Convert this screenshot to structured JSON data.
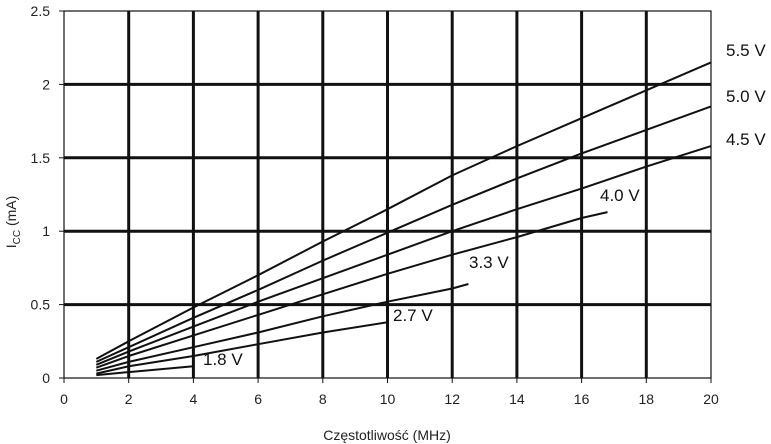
{
  "chart_data": {
    "type": "line",
    "xlabel": "Częstotliwość (MHz)",
    "ylabel_main": "I",
    "ylabel_sub": "CC",
    "ylabel_unit": " (mA)",
    "xlim": [
      0,
      20
    ],
    "ylim": [
      0,
      2.5
    ],
    "x_ticks": [
      0,
      2,
      4,
      6,
      8,
      10,
      12,
      14,
      16,
      18,
      20
    ],
    "y_ticks": [
      0,
      0.5,
      1,
      1.5,
      2,
      2.5
    ],
    "x_tick_labels": [
      "0",
      "2",
      "4",
      "6",
      "8",
      "10",
      "12",
      "14",
      "16",
      "18",
      "20"
    ],
    "y_tick_labels": [
      "0",
      "0.5",
      "1",
      "1.5",
      "2",
      "2.5"
    ],
    "grid": true,
    "series": [
      {
        "name": "5.5 V",
        "x": [
          1,
          2,
          4,
          6,
          8,
          10,
          12,
          14,
          16,
          18,
          20
        ],
        "y": [
          0.13,
          0.25,
          0.48,
          0.7,
          0.93,
          1.15,
          1.38,
          1.58,
          1.77,
          1.96,
          2.15
        ]
      },
      {
        "name": "5.0 V",
        "x": [
          1,
          2,
          4,
          6,
          8,
          10,
          12,
          14,
          16,
          18,
          20
        ],
        "y": [
          0.11,
          0.21,
          0.41,
          0.6,
          0.8,
          0.99,
          1.18,
          1.36,
          1.53,
          1.69,
          1.85
        ]
      },
      {
        "name": "4.5 V",
        "x": [
          1,
          2,
          4,
          6,
          8,
          10,
          12,
          14,
          16,
          18,
          20
        ],
        "y": [
          0.09,
          0.18,
          0.35,
          0.52,
          0.68,
          0.84,
          1.0,
          1.15,
          1.29,
          1.44,
          1.58
        ]
      },
      {
        "name": "4.0 V",
        "x": [
          1,
          2,
          4,
          6,
          8,
          10,
          12,
          14,
          16,
          16.8
        ],
        "y": [
          0.07,
          0.15,
          0.29,
          0.43,
          0.57,
          0.71,
          0.84,
          0.96,
          1.09,
          1.13
        ]
      },
      {
        "name": "3.3 V",
        "x": [
          1,
          2,
          4,
          6,
          8,
          10,
          12,
          12.5
        ],
        "y": [
          0.05,
          0.11,
          0.21,
          0.31,
          0.42,
          0.52,
          0.61,
          0.64
        ]
      },
      {
        "name": "2.7 V",
        "x": [
          1,
          2,
          4,
          6,
          8,
          10
        ],
        "y": [
          0.03,
          0.08,
          0.15,
          0.23,
          0.31,
          0.38
        ]
      },
      {
        "name": "1.8 V",
        "x": [
          1,
          2,
          4
        ],
        "y": [
          0.02,
          0.04,
          0.08
        ]
      }
    ]
  }
}
